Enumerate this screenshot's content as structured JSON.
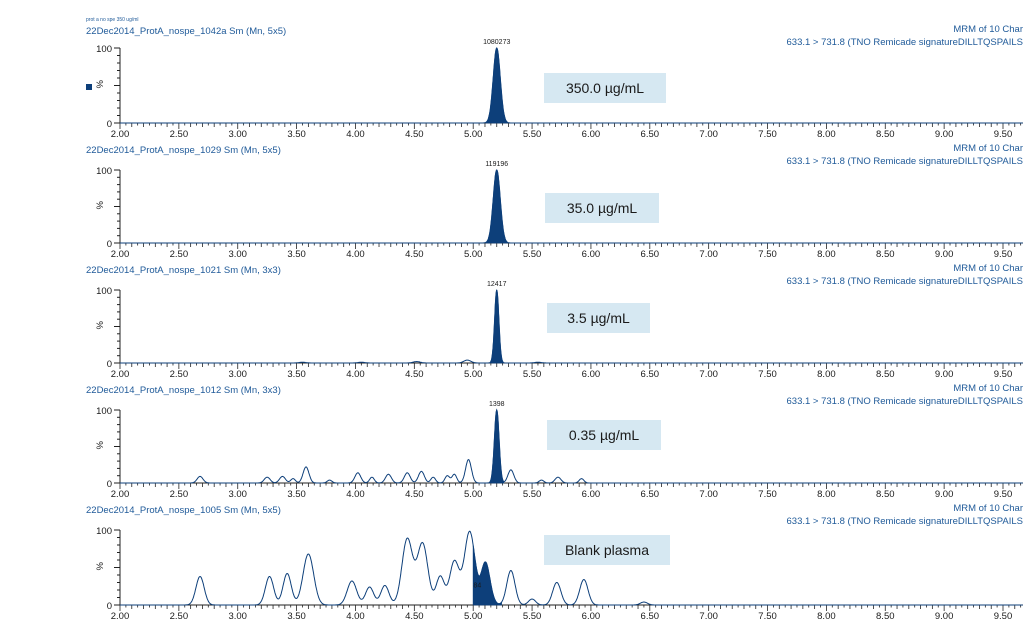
{
  "header_note": "prot a no spe 350 ug/ml",
  "colors": {
    "accent": "#1f5a99",
    "fill": "#0d3f7a",
    "label_bg": "#d6e8f2",
    "text": "#1a1a1a"
  },
  "chart_data": [
    {
      "type": "line",
      "title": "22Dec2014_ProtA_nospe_1042a Sm (Mn, 5x5)",
      "right_title_1": "MRM of 10 Char",
      "right_title_2": "633.1 > 731.8 (TNO Remicade signatureDILLTQSPAILS",
      "ylabel": "%",
      "yticks": [
        "0",
        "100"
      ],
      "ylim": [
        0,
        100
      ],
      "xlim": [
        2.0,
        10.0
      ],
      "xticks": [
        "2.00",
        "2.50",
        "3.00",
        "3.50",
        "4.00",
        "4.50",
        "5.00",
        "5.50",
        "6.00",
        "6.50",
        "7.00",
        "7.50",
        "8.00",
        "8.50",
        "9.00",
        "9.50"
      ],
      "peak_label": "1080273",
      "annotation": "350.0 µg/mL",
      "peak": {
        "x": 5.2,
        "y": 100,
        "width": 0.03
      },
      "noise": [],
      "legend_marker": true
    },
    {
      "type": "line",
      "title": "22Dec2014_ProtA_nospe_1029 Sm (Mn, 5x5)",
      "right_title_1": "MRM of 10 Char",
      "right_title_2": "633.1 > 731.8 (TNO Remicade signatureDILLTQSPAILS",
      "ylabel": "%",
      "yticks": [
        "0",
        "100"
      ],
      "ylim": [
        0,
        100
      ],
      "xlim": [
        2.0,
        10.0
      ],
      "xticks": [
        "2.00",
        "2.50",
        "3.00",
        "3.50",
        "4.00",
        "4.50",
        "5.00",
        "5.50",
        "6.00",
        "6.50",
        "7.00",
        "7.50",
        "8.00",
        "8.50",
        "9.00",
        "9.50"
      ],
      "peak_label": "119196",
      "annotation": "35.0 µg/mL",
      "peak": {
        "x": 5.2,
        "y": 100,
        "width": 0.03
      },
      "noise": []
    },
    {
      "type": "line",
      "title": "22Dec2014_ProtA_nospe_1021 Sm (Mn, 3x3)",
      "right_title_1": "MRM of 10 Char",
      "right_title_2": "633.1 > 731.8 (TNO Remicade signatureDILLTQSPAILS",
      "ylabel": "%",
      "yticks": [
        "0",
        "100"
      ],
      "ylim": [
        0,
        100
      ],
      "xlim": [
        2.0,
        10.0
      ],
      "xticks": [
        "2.00",
        "2.50",
        "3.00",
        "3.50",
        "4.00",
        "4.50",
        "5.00",
        "5.50",
        "6.00",
        "6.50",
        "7.00",
        "7.50",
        "8.00",
        "8.50",
        "9.00",
        "9.50"
      ],
      "peak_label": "12417",
      "annotation": "3.5 µg/mL",
      "peak": {
        "x": 5.2,
        "y": 100,
        "width": 0.018
      },
      "noise": [
        {
          "x": 3.55,
          "y": 1,
          "w": 0.03
        },
        {
          "x": 4.05,
          "y": 1,
          "w": 0.03
        },
        {
          "x": 4.52,
          "y": 2,
          "w": 0.03
        },
        {
          "x": 4.95,
          "y": 4,
          "w": 0.03
        },
        {
          "x": 5.55,
          "y": 1,
          "w": 0.03
        }
      ]
    },
    {
      "type": "line",
      "title": "22Dec2014_ProtA_nospe_1012 Sm (Mn, 3x3)",
      "right_title_1": "MRM of 10 Char",
      "right_title_2": "633.1 > 731.8 (TNO Remicade signatureDILLTQSPAILS",
      "ylabel": "%",
      "yticks": [
        "0",
        "100"
      ],
      "ylim": [
        0,
        100
      ],
      "xlim": [
        2.0,
        10.0
      ],
      "xticks": [
        "2.00",
        "2.50",
        "3.00",
        "3.50",
        "4.00",
        "4.50",
        "5.00",
        "5.50",
        "6.00",
        "6.50",
        "7.00",
        "7.50",
        "8.00",
        "8.50",
        "9.00",
        "9.50"
      ],
      "peak_label": "1398",
      "annotation": "0.35 µg/mL",
      "peak": {
        "x": 5.2,
        "y": 100,
        "width": 0.02
      },
      "noise": [
        {
          "x": 2.68,
          "y": 9,
          "w": 0.025
        },
        {
          "x": 3.25,
          "y": 8,
          "w": 0.025
        },
        {
          "x": 3.38,
          "y": 9,
          "w": 0.025
        },
        {
          "x": 3.47,
          "y": 6,
          "w": 0.02
        },
        {
          "x": 3.58,
          "y": 22,
          "w": 0.025
        },
        {
          "x": 3.78,
          "y": 4,
          "w": 0.02
        },
        {
          "x": 4.02,
          "y": 14,
          "w": 0.025
        },
        {
          "x": 4.14,
          "y": 8,
          "w": 0.02
        },
        {
          "x": 4.28,
          "y": 12,
          "w": 0.025
        },
        {
          "x": 4.44,
          "y": 14,
          "w": 0.025
        },
        {
          "x": 4.56,
          "y": 16,
          "w": 0.025
        },
        {
          "x": 4.66,
          "y": 8,
          "w": 0.02
        },
        {
          "x": 4.78,
          "y": 10,
          "w": 0.02
        },
        {
          "x": 4.84,
          "y": 12,
          "w": 0.02
        },
        {
          "x": 4.96,
          "y": 32,
          "w": 0.025
        },
        {
          "x": 5.32,
          "y": 18,
          "w": 0.025
        },
        {
          "x": 5.58,
          "y": 4,
          "w": 0.02
        },
        {
          "x": 5.72,
          "y": 8,
          "w": 0.025
        },
        {
          "x": 5.92,
          "y": 6,
          "w": 0.02
        }
      ]
    },
    {
      "type": "line",
      "title": "22Dec2014_ProtA_nospe_1005 Sm (Mn, 5x5)",
      "right_title_1": "MRM of 10 Char",
      "right_title_2": "633.1 > 731.8 (TNO Remicade signatureDILLTQSPAILS",
      "ylabel": "%",
      "yticks": [
        "0",
        "100"
      ],
      "ylim": [
        0,
        100
      ],
      "xlim": [
        2.0,
        10.0
      ],
      "xticks": [
        "2.00",
        "2.50",
        "3.00",
        "3.50",
        "4.00",
        "4.50",
        "5.00",
        "5.50",
        "6.00",
        "6.50",
        "7.00",
        "7.50",
        "8.00",
        "8.50",
        "9.00",
        "9.50"
      ],
      "peak_label": "84",
      "annotation": "Blank plasma",
      "peak": {
        "x": 5.12,
        "y": 18,
        "width": 0.04
      },
      "noise": [
        {
          "x": 2.68,
          "y": 38,
          "w": 0.035
        },
        {
          "x": 3.27,
          "y": 38,
          "w": 0.035
        },
        {
          "x": 3.42,
          "y": 42,
          "w": 0.035
        },
        {
          "x": 3.6,
          "y": 68,
          "w": 0.045
        },
        {
          "x": 3.97,
          "y": 32,
          "w": 0.04
        },
        {
          "x": 4.12,
          "y": 24,
          "w": 0.035
        },
        {
          "x": 4.25,
          "y": 26,
          "w": 0.035
        },
        {
          "x": 4.44,
          "y": 88,
          "w": 0.045
        },
        {
          "x": 4.57,
          "y": 82,
          "w": 0.045
        },
        {
          "x": 4.72,
          "y": 38,
          "w": 0.035
        },
        {
          "x": 4.84,
          "y": 58,
          "w": 0.04
        },
        {
          "x": 4.97,
          "y": 98,
          "w": 0.045
        },
        {
          "x": 5.1,
          "y": 40,
          "w": 0.035
        },
        {
          "x": 5.32,
          "y": 46,
          "w": 0.035
        },
        {
          "x": 5.5,
          "y": 8,
          "w": 0.03
        },
        {
          "x": 5.71,
          "y": 30,
          "w": 0.035
        },
        {
          "x": 5.94,
          "y": 34,
          "w": 0.035
        },
        {
          "x": 6.45,
          "y": 4,
          "w": 0.03
        }
      ]
    }
  ]
}
